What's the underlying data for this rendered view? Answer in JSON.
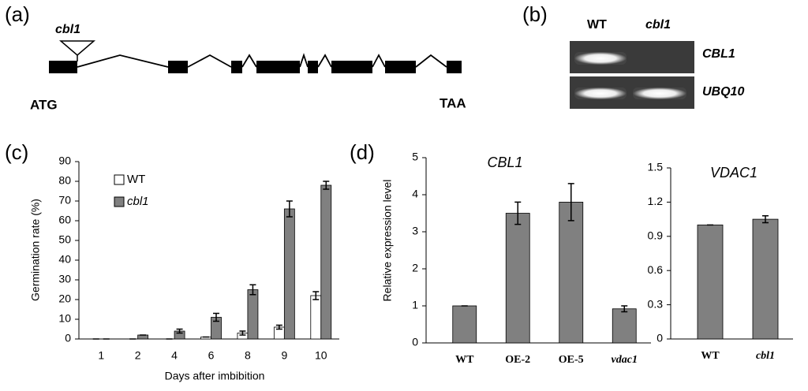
{
  "panel_a": {
    "label": "(a)",
    "insertion": "cbl1",
    "start": "ATG",
    "stop": "TAA"
  },
  "panel_b": {
    "label": "(b)",
    "lanes": [
      "WT",
      "cbl1"
    ],
    "genes": [
      "CBL1",
      "UBQ10"
    ]
  },
  "chart_data": [
    {
      "type": "bar",
      "panel_label": "(c)",
      "xlabel": "Days after imbibition",
      "ylabel": "Germination rate (%)",
      "categories": [
        1,
        2,
        4,
        6,
        8,
        9,
        10
      ],
      "series": [
        {
          "name": "WT",
          "color": "#ffffff",
          "values": [
            0,
            0,
            0,
            1,
            3,
            6,
            22
          ],
          "errors": [
            0,
            0,
            0,
            0,
            1,
            1,
            2
          ]
        },
        {
          "name": "cbl1",
          "color": "#808080",
          "values": [
            0,
            2,
            4,
            11,
            25,
            66,
            78
          ],
          "errors": [
            0,
            0,
            1,
            2,
            2.5,
            4,
            2
          ]
        }
      ],
      "ylim": [
        0,
        90
      ],
      "yticks": [
        0,
        10,
        20,
        30,
        40,
        50,
        60,
        70,
        80,
        90
      ]
    },
    {
      "type": "bar",
      "panel_label": "(d)",
      "title": "CBL1",
      "ylabel": "Relative expression level",
      "categories": [
        "WT",
        "OE-2",
        "OE-5",
        "vdac1"
      ],
      "values": [
        1,
        3.5,
        3.8,
        0.92
      ],
      "errors": [
        0,
        0.3,
        0.5,
        0.08
      ],
      "color": "#808080",
      "ylim": [
        0,
        5
      ],
      "yticks": [
        0,
        1,
        2,
        3,
        4,
        5
      ]
    },
    {
      "type": "bar",
      "title": "VDAC1",
      "categories": [
        "WT",
        "cbl1"
      ],
      "values": [
        1,
        1.05
      ],
      "errors": [
        0,
        0.03
      ],
      "color": "#808080",
      "ylim": [
        0,
        1.5
      ],
      "yticks": [
        0,
        0.3,
        0.6,
        0.9,
        1.2,
        1.5
      ]
    }
  ]
}
